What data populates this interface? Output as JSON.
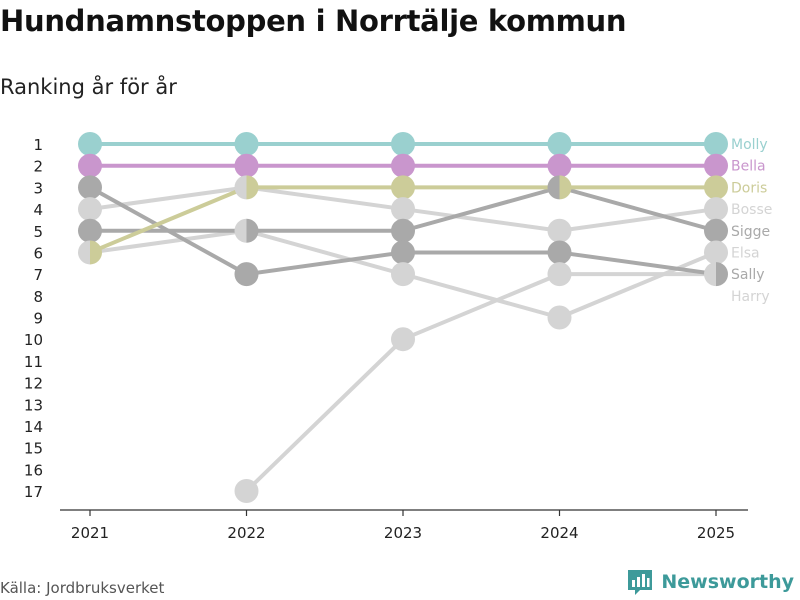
{
  "header": {
    "title": "Hundnamnstoppen i Norrtälje kommun",
    "subtitle": "Ranking år för år"
  },
  "footer": {
    "source": "Källa: Jordbruksverket",
    "brand": "Newsworthy"
  },
  "colors": {
    "molly": "#9ad0cf",
    "bella": "#c996cd",
    "doris": "#cccc99",
    "light_gray": "#d4d4d4",
    "dark_gray": "#a9a9a9",
    "axis": "#333333",
    "brand": "#3d9a9a"
  },
  "chart_data": {
    "type": "line",
    "title": "Hundnamnstoppen i Norrtälje kommun",
    "subtitle": "Ranking år för år",
    "xlabel": "",
    "ylabel": "",
    "x": [
      "2021",
      "2022",
      "2023",
      "2024",
      "2025"
    ],
    "yticks": [
      "1",
      "2",
      "3",
      "4",
      "5",
      "6",
      "7",
      "8",
      "9",
      "10",
      "11",
      "12",
      "13",
      "14",
      "15",
      "16",
      "17"
    ],
    "ylim": [
      17,
      1
    ],
    "y_inverted": true,
    "grid": false,
    "legend": "direct labels at right end",
    "series": [
      {
        "name": "Harry",
        "color": "#d4d4d4",
        "values": [
          null,
          17,
          10,
          7,
          7
        ]
      },
      {
        "name": "Elsa",
        "color": "#d4d4d4",
        "values": [
          6,
          5,
          7,
          9,
          6
        ]
      },
      {
        "name": "Bosse",
        "color": "#d4d4d4",
        "values": [
          4,
          3,
          4,
          5,
          4
        ]
      },
      {
        "name": "Sally",
        "color": "#a9a9a9",
        "values": [
          3,
          7,
          6,
          6,
          7
        ]
      },
      {
        "name": "Sigge",
        "color": "#a9a9a9",
        "values": [
          5,
          5,
          5,
          3,
          5
        ]
      },
      {
        "name": "Doris",
        "color": "#cccc99",
        "values": [
          6,
          3,
          3,
          3,
          3
        ]
      },
      {
        "name": "Bella",
        "color": "#c996cd",
        "values": [
          2,
          2,
          2,
          2,
          2
        ]
      },
      {
        "name": "Molly",
        "color": "#9ad0cf",
        "values": [
          1,
          1,
          1,
          1,
          1
        ]
      }
    ],
    "end_labels": [
      {
        "name": "Molly",
        "rank": 1,
        "color": "#9ad0cf"
      },
      {
        "name": "Bella",
        "rank": 2,
        "color": "#c996cd"
      },
      {
        "name": "Doris",
        "rank": 3,
        "color": "#cccc99"
      },
      {
        "name": "Bosse",
        "rank": 4,
        "color": "#d4d4d4"
      },
      {
        "name": "Sigge",
        "rank": 5,
        "color": "#a9a9a9"
      },
      {
        "name": "Elsa",
        "rank": 6,
        "color": "#d4d4d4"
      },
      {
        "name": "Sally",
        "rank": 7,
        "color": "#a9a9a9"
      },
      {
        "name": "Harry",
        "rank": 8,
        "color": "#d4d4d4"
      }
    ]
  }
}
